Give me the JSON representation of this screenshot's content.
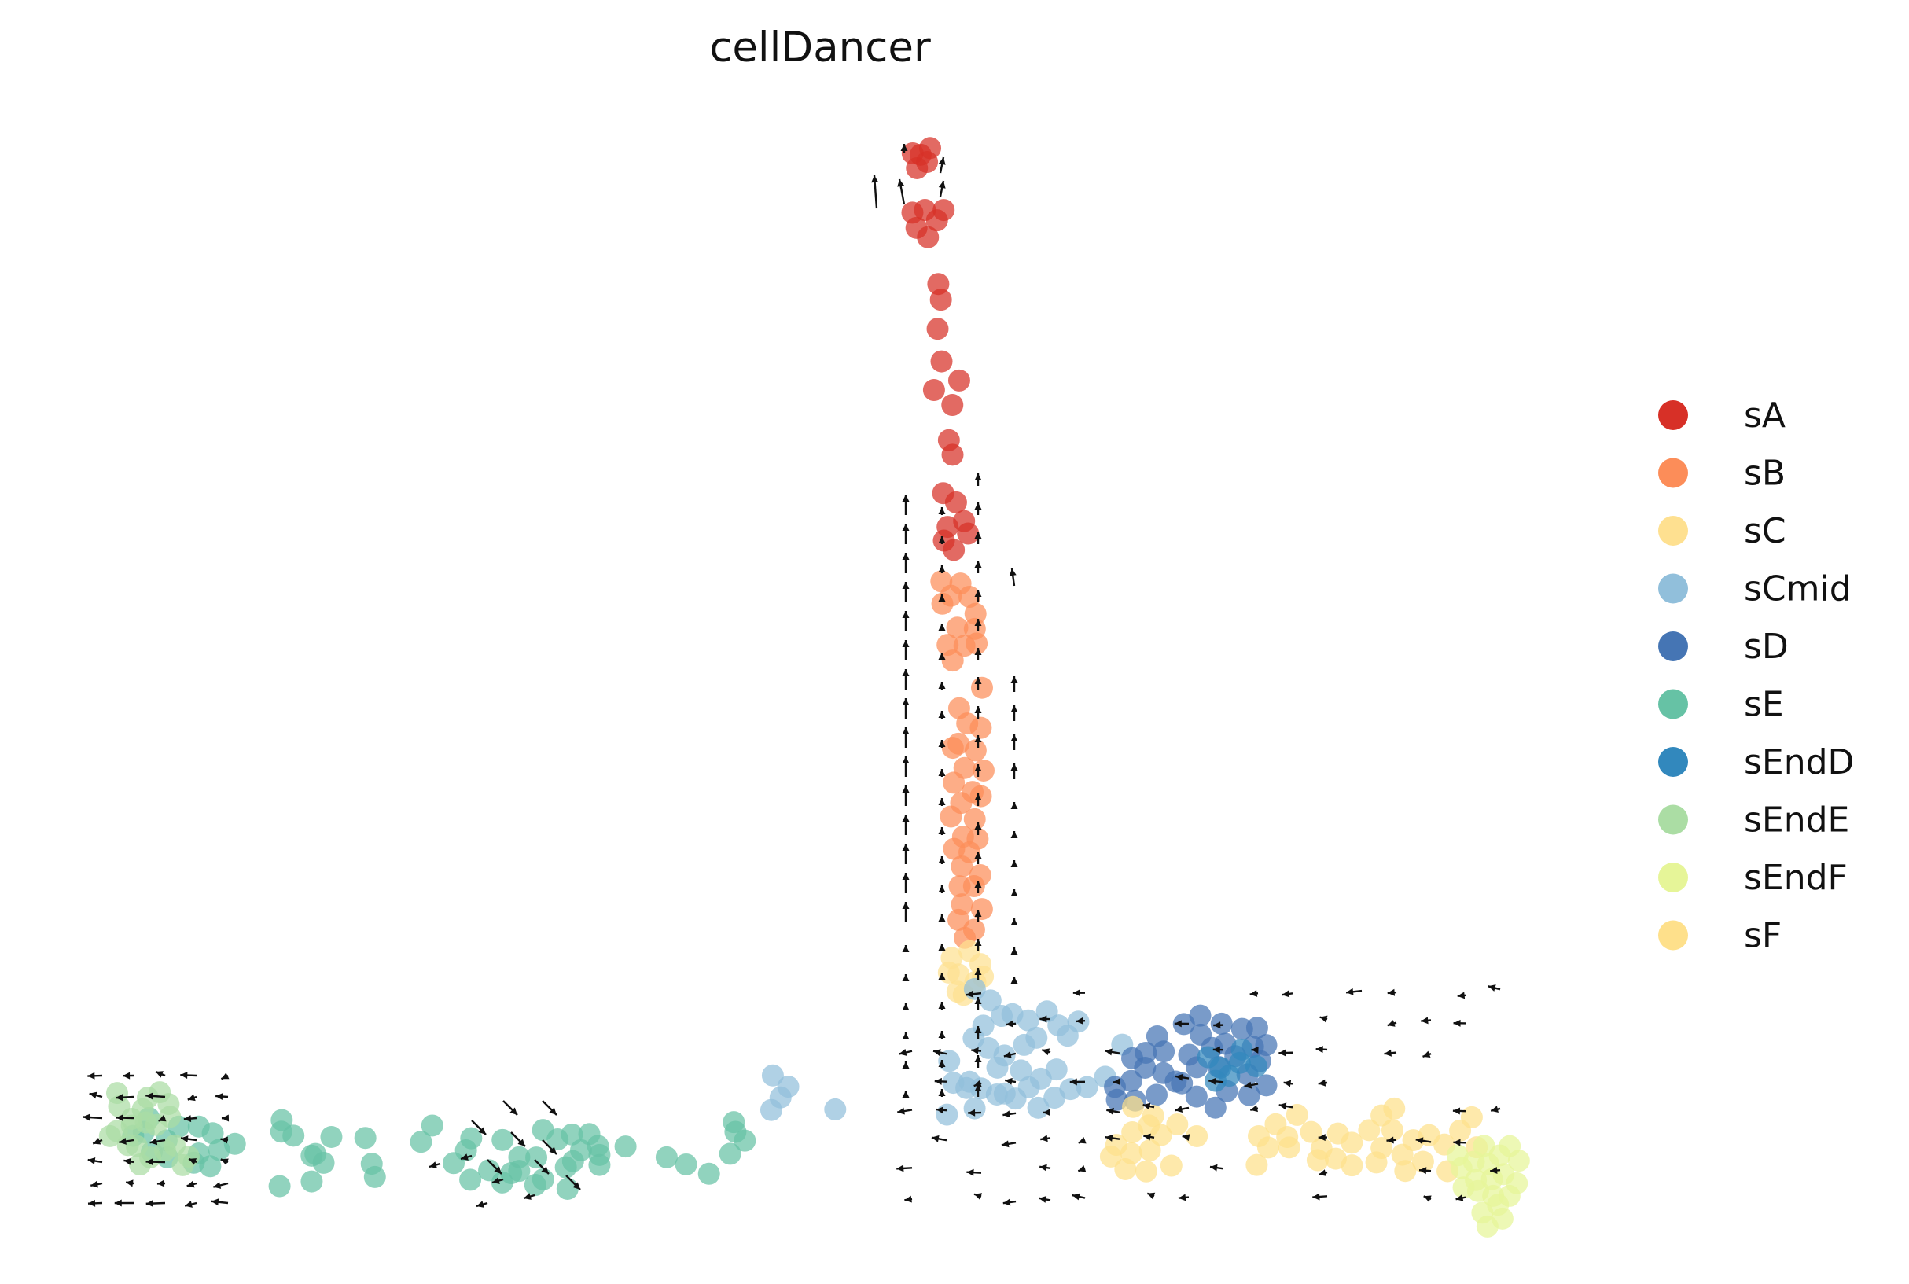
{
  "chart_data": {
    "type": "scatter",
    "title": "cellDancer",
    "xlabel": "",
    "ylabel": "",
    "grid": false,
    "axes_visible": false,
    "legend_placement": "right",
    "series": [
      {
        "name": "sA",
        "color": "#d73027"
      },
      {
        "name": "sB",
        "color": "#fc8d59"
      },
      {
        "name": "sC",
        "color": "#fee090"
      },
      {
        "name": "sCmid",
        "color": "#91bfdb"
      },
      {
        "name": "sD",
        "color": "#4575b4"
      },
      {
        "name": "sE",
        "color": "#66c2a5"
      },
      {
        "name": "sEndD",
        "color": "#3288bd"
      },
      {
        "name": "sEndE",
        "color": "#abdda4"
      },
      {
        "name": "sEndF",
        "color": "#e6f598"
      },
      {
        "name": "sF",
        "color": "#fee08b"
      }
    ],
    "note_markers": "velocity arrows overlaid on embedding"
  }
}
